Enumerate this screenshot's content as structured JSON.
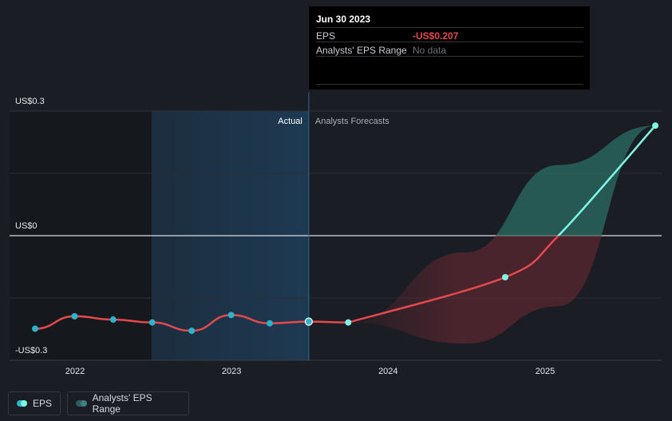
{
  "colors": {
    "background": "#1a1d23",
    "actual_line": "#e5484d",
    "forecast_line": "#7ff7e5",
    "actual_dot": "#2fb3c9",
    "forecast_dot": "#7ff7e5",
    "range_positive": "#2c6d66",
    "range_negative": "#6b2a33",
    "highlight": "#1e3b55",
    "negative_text": "#e5484d"
  },
  "tooltip": {
    "date": "Jun 30 2023",
    "eps_label": "EPS",
    "eps_value": "-US$0.207",
    "range_label": "Analysts' EPS Range",
    "range_value": "No data"
  },
  "legend": {
    "eps": "EPS",
    "range": "Analysts' EPS Range"
  },
  "chart_data": {
    "type": "line",
    "y_axis": {
      "ticks": [
        {
          "value": 0.3,
          "label": "US$0.3"
        },
        {
          "value": 0,
          "label": "US$0"
        },
        {
          "value": -0.3,
          "label": "-US$0.3"
        }
      ],
      "range": [
        -0.3,
        0.3
      ]
    },
    "x_axis": {
      "ticks": [
        "2022",
        "2023",
        "2024",
        "2025"
      ]
    },
    "region_labels": {
      "actual": "Actual",
      "forecast": "Analysts Forecasts"
    },
    "series": [
      {
        "name": "EPS",
        "kind": "actual",
        "points": [
          {
            "x": "2021-09-30",
            "y": -0.224
          },
          {
            "x": "2021-12-31",
            "y": -0.194
          },
          {
            "x": "2022-03-31",
            "y": -0.202
          },
          {
            "x": "2022-06-30",
            "y": -0.209
          },
          {
            "x": "2022-09-30",
            "y": -0.229
          },
          {
            "x": "2022-12-31",
            "y": -0.191
          },
          {
            "x": "2023-03-31",
            "y": -0.211
          },
          {
            "x": "2023-06-30",
            "y": -0.207
          },
          {
            "x": "2023-09-30",
            "y": -0.209
          }
        ]
      },
      {
        "name": "EPS Forecast",
        "kind": "forecast",
        "points": [
          {
            "x": "2023-09-30",
            "y": -0.209
          },
          {
            "x": "2024-09-30",
            "y": -0.1
          },
          {
            "x": "2025-02-01",
            "y": 0.0
          },
          {
            "x": "2025-09-15",
            "y": 0.265
          }
        ]
      }
    ],
    "range_band": {
      "upper": [
        {
          "x": "2023-09-30",
          "y": -0.209
        },
        {
          "x": "2024-06-30",
          "y": -0.04
        },
        {
          "x": "2025-02-01",
          "y": 0.17
        },
        {
          "x": "2025-09-15",
          "y": 0.265
        }
      ],
      "lower": [
        {
          "x": "2023-09-30",
          "y": -0.209
        },
        {
          "x": "2024-06-30",
          "y": -0.26
        },
        {
          "x": "2025-02-01",
          "y": -0.17
        },
        {
          "x": "2025-09-15",
          "y": 0.265
        }
      ]
    },
    "highlight_date": "2023-06-30"
  }
}
